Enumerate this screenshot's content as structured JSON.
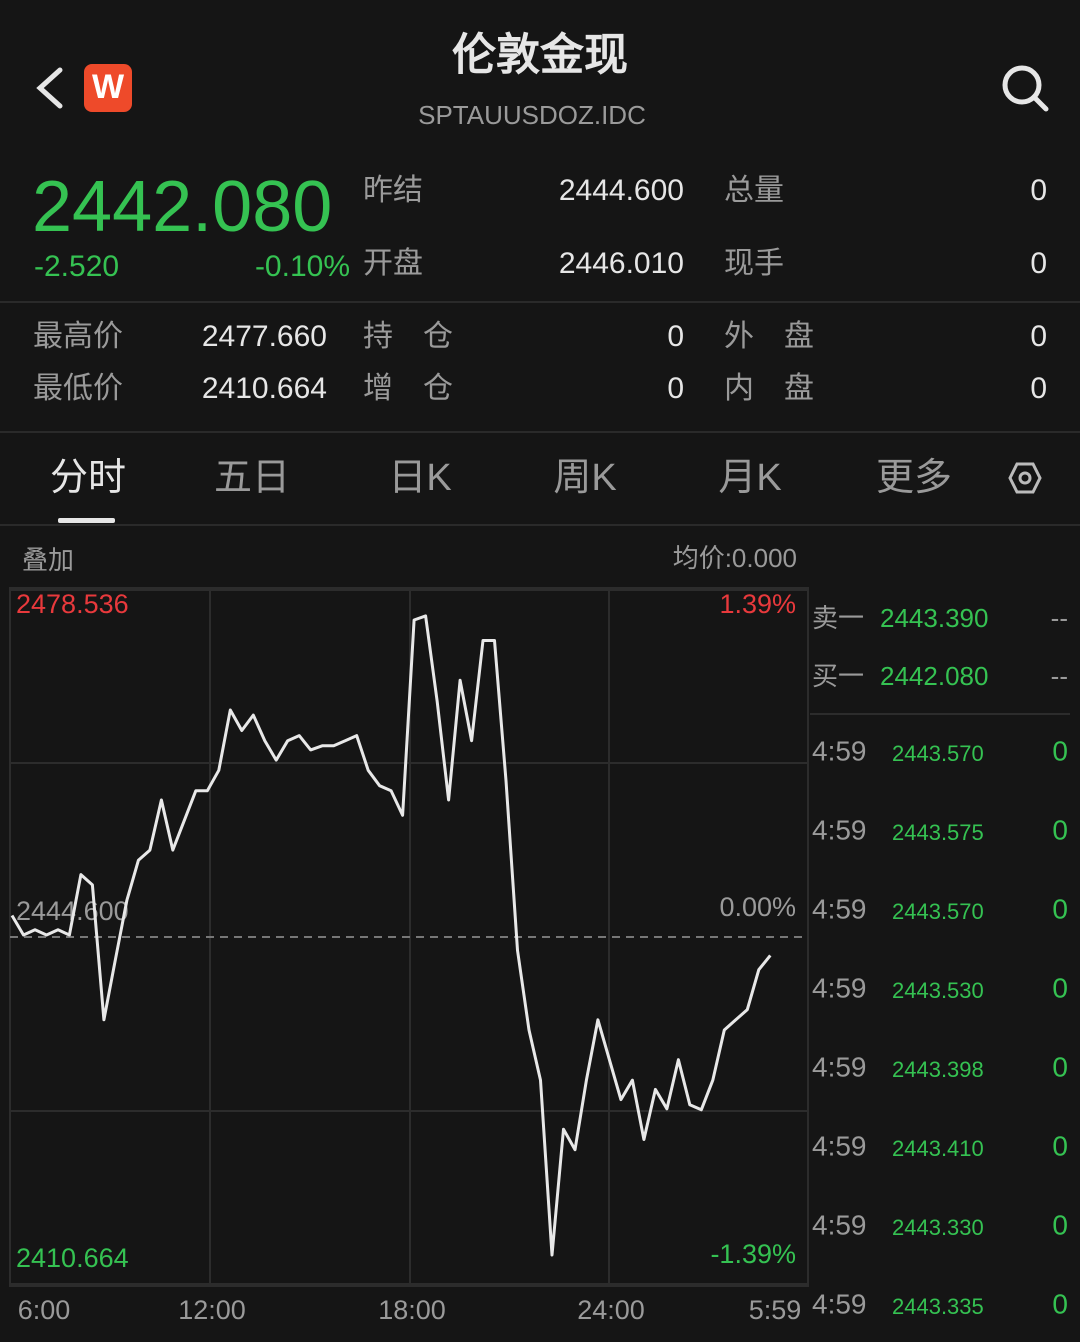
{
  "header": {
    "title": "伦敦金现",
    "code": "SPTAUUSDOZ.IDC",
    "badge": "W"
  },
  "quote": {
    "price": "2442.080",
    "change": "-2.520",
    "change_pct": "-0.10%",
    "fields": [
      {
        "label": "昨结",
        "value": "2444.600"
      },
      {
        "label": "开盘",
        "value": "2446.010"
      },
      {
        "label": "总量",
        "value": "0"
      },
      {
        "label": "现手",
        "value": "0"
      }
    ]
  },
  "stats": [
    {
      "label": "最高价",
      "value": "2477.660"
    },
    {
      "label": "最低价",
      "value": "2410.664"
    },
    {
      "label": "持　仓",
      "value": "0"
    },
    {
      "label": "增　仓",
      "value": "0"
    },
    {
      "label": "外　盘",
      "value": "0"
    },
    {
      "label": "内　盘",
      "value": "0"
    }
  ],
  "tabs": [
    "分时",
    "五日",
    "日K",
    "周K",
    "月K",
    "更多"
  ],
  "chart_header": {
    "overlay": "叠加",
    "avg": "均价:0.000"
  },
  "chart_data": {
    "type": "line",
    "series": [
      {
        "color": "#e8e8e8",
        "values": [
          2446.7,
          2444.8,
          2445.3,
          2444.8,
          2445.3,
          2444.8,
          2450.7,
          2449.7,
          2436.5,
          2442.4,
          2448.2,
          2452.1,
          2453.1,
          2458.0,
          2453.1,
          2456.0,
          2458.9,
          2458.9,
          2460.9,
          2466.8,
          2464.8,
          2466.3,
          2463.8,
          2461.9,
          2463.8,
          2464.3,
          2462.9,
          2463.3,
          2463.3,
          2463.8,
          2464.3,
          2460.9,
          2459.4,
          2458.9,
          2456.5,
          2475.6,
          2476.0,
          2467.7,
          2458.0,
          2469.7,
          2463.8,
          2473.6,
          2473.6,
          2459.9,
          2443.3,
          2435.5,
          2430.6,
          2413.5,
          2425.8,
          2423.8,
          2430.6,
          2436.5,
          2432.6,
          2428.7,
          2430.6,
          2424.8,
          2429.7,
          2427.8,
          2432.6,
          2428.2,
          2427.7,
          2430.6,
          2435.5,
          2436.5,
          2437.5,
          2441.4,
          2442.8
        ]
      }
    ],
    "xtick_labels": [
      "6:00",
      "12:00",
      "18:00",
      "24:00",
      "5:59"
    ],
    "ylim": [
      2410.664,
      2478.536
    ],
    "yticks": [
      2410.664,
      {
        "value": 2444.6,
        "label": "2444.600"
      },
      2478.536
    ],
    "y2lim": [
      -1.39,
      1.39
    ],
    "y2ticks": [
      {
        "value": -1.39,
        "label": "-1.39%"
      },
      {
        "value": 0,
        "label": "0.00%"
      },
      {
        "value": 1.39,
        "label": "1.39%"
      }
    ]
  },
  "order_book": [
    {
      "side": "卖一",
      "price": "2443.390",
      "vol": "--"
    },
    {
      "side": "买一",
      "price": "2442.080",
      "vol": "--"
    }
  ],
  "trades": [
    {
      "time": "4:59",
      "price": "2443.570",
      "vol": "0"
    },
    {
      "time": "4:59",
      "price": "2443.575",
      "vol": "0"
    },
    {
      "time": "4:59",
      "price": "2443.570",
      "vol": "0"
    },
    {
      "time": "4:59",
      "price": "2443.530",
      "vol": "0"
    },
    {
      "time": "4:59",
      "price": "2443.398",
      "vol": "0"
    },
    {
      "time": "4:59",
      "price": "2443.410",
      "vol": "0"
    },
    {
      "time": "4:59",
      "price": "2443.330",
      "vol": "0"
    },
    {
      "time": "4:59",
      "price": "2443.335",
      "vol": "0"
    }
  ]
}
